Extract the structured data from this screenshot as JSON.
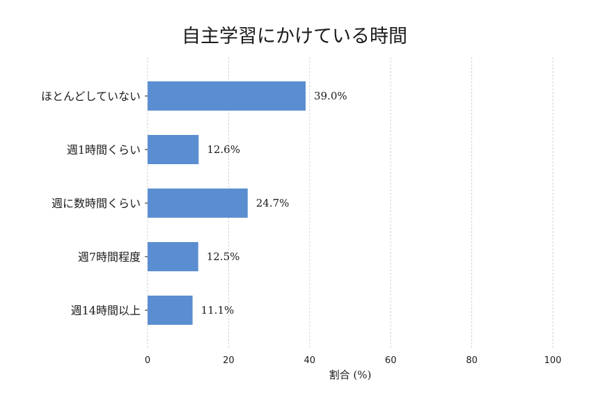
{
  "chart_data": {
    "type": "bar",
    "orientation": "horizontal",
    "title": "自主学習にかけている時間",
    "xlabel": "割合 (%)",
    "ylabel": "",
    "xlim": [
      0,
      100
    ],
    "xticks": [
      0,
      20,
      40,
      60,
      80,
      100
    ],
    "categories": [
      "ほとんどしていない",
      "週1時間くらい",
      "週に数時間くらい",
      "週7時間程度",
      "週14時間以上"
    ],
    "values": [
      39.0,
      12.6,
      24.7,
      12.5,
      11.1
    ],
    "value_labels": [
      "39.0%",
      "12.6%",
      "24.7%",
      "12.5%",
      "11.1%"
    ],
    "bar_color": "#5b8ed0",
    "grid": "vertical dashed"
  }
}
